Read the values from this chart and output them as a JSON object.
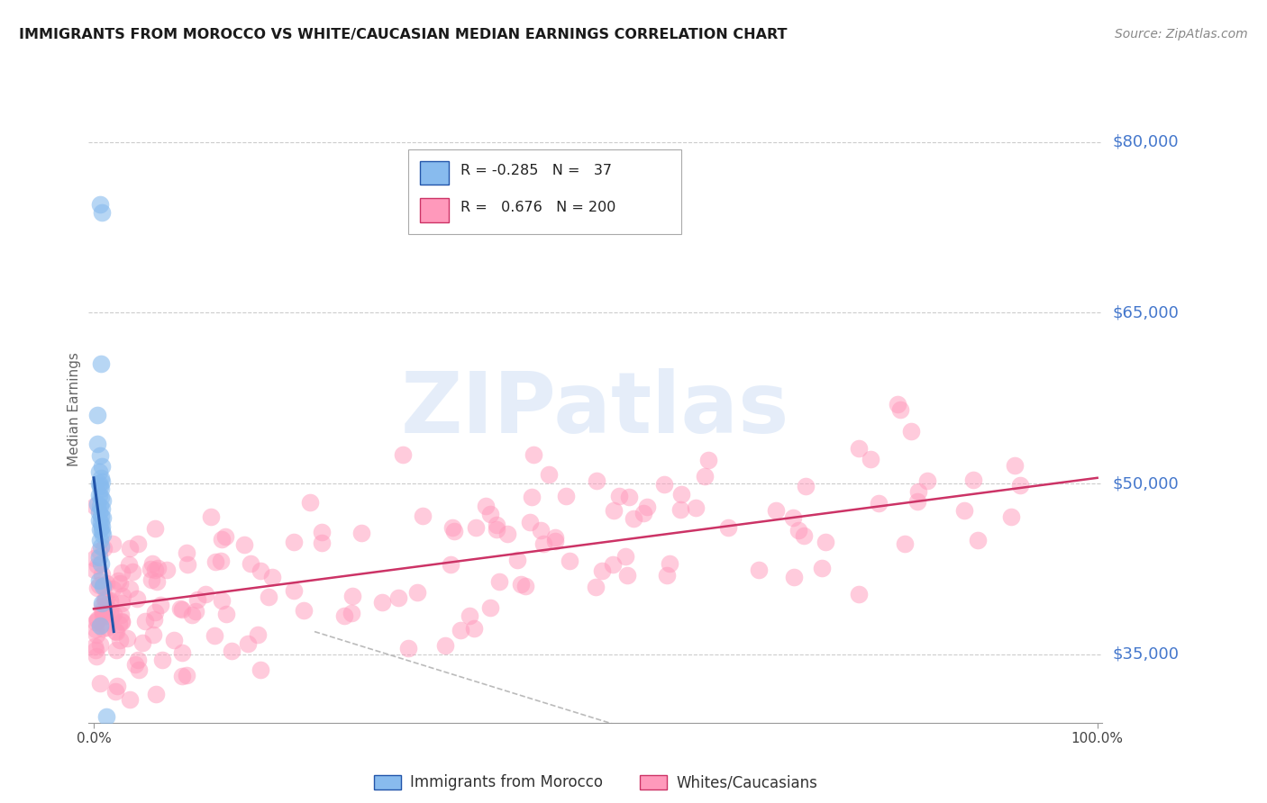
{
  "title": "IMMIGRANTS FROM MOROCCO VS WHITE/CAUCASIAN MEDIAN EARNINGS CORRELATION CHART",
  "source": "Source: ZipAtlas.com",
  "ylabel": "Median Earnings",
  "ytick_labels": [
    "$35,000",
    "$50,000",
    "$65,000",
    "$80,000"
  ],
  "ytick_values": [
    35000,
    50000,
    65000,
    80000
  ],
  "ymin": 29000,
  "ymax": 84000,
  "xmin": -0.005,
  "xmax": 1.005,
  "legend_label1": "Immigrants from Morocco",
  "legend_label2": "Whites/Caucasians",
  "title_color": "#1a1a1a",
  "axis_label_color": "#4477cc",
  "source_color": "#888888",
  "watermark": "ZIPatlas",
  "blue_scatter": [
    [
      0.006,
      74500
    ],
    [
      0.008,
      73800
    ],
    [
      0.007,
      60500
    ],
    [
      0.004,
      53500
    ],
    [
      0.006,
      52500
    ],
    [
      0.008,
      51500
    ],
    [
      0.005,
      51000
    ],
    [
      0.007,
      50500
    ],
    [
      0.008,
      50200
    ],
    [
      0.005,
      50000
    ],
    [
      0.006,
      49800
    ],
    [
      0.007,
      49500
    ],
    [
      0.005,
      49000
    ],
    [
      0.007,
      48800
    ],
    [
      0.009,
      48500
    ],
    [
      0.004,
      48200
    ],
    [
      0.006,
      48000
    ],
    [
      0.008,
      47800
    ],
    [
      0.005,
      47500
    ],
    [
      0.007,
      47200
    ],
    [
      0.009,
      47000
    ],
    [
      0.005,
      46800
    ],
    [
      0.007,
      46500
    ],
    [
      0.008,
      46200
    ],
    [
      0.006,
      46000
    ],
    [
      0.008,
      45800
    ],
    [
      0.009,
      45500
    ],
    [
      0.006,
      45000
    ],
    [
      0.007,
      44500
    ],
    [
      0.005,
      43500
    ],
    [
      0.007,
      43000
    ],
    [
      0.005,
      41500
    ],
    [
      0.009,
      41000
    ],
    [
      0.008,
      39500
    ],
    [
      0.006,
      37500
    ],
    [
      0.013,
      29500
    ],
    [
      0.004,
      56000
    ]
  ],
  "blue_line_x": [
    0.0,
    0.02
  ],
  "blue_line_y": [
    50500,
    37000
  ],
  "pink_line_x": [
    0.0,
    1.0
  ],
  "pink_line_y": [
    39000,
    50500
  ],
  "gray_dashed_line_x": [
    0.22,
    0.55
  ],
  "gray_dashed_line_y": [
    37000,
    28000
  ],
  "blue_color": "#88bbee",
  "pink_color": "#ff99bb",
  "blue_line_color": "#2255aa",
  "pink_line_color": "#cc3366",
  "gray_dashed_color": "#bbbbbb"
}
